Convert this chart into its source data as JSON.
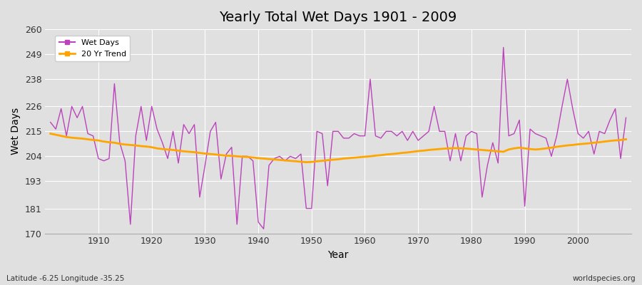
{
  "title": "Yearly Total Wet Days 1901 - 2009",
  "xlabel": "Year",
  "ylabel": "Wet Days",
  "subtitle_left": "Latitude -6.25 Longitude -35.25",
  "subtitle_right": "worldspecies.org",
  "ylim": [
    170,
    260
  ],
  "yticks": [
    170,
    181,
    193,
    204,
    215,
    226,
    238,
    249,
    260
  ],
  "line_color": "#BB44BB",
  "trend_color": "#FFA500",
  "bg_color": "#E0E0E0",
  "wet_days": [
    219,
    216,
    225,
    213,
    226,
    221,
    226,
    214,
    213,
    203,
    202,
    203,
    236,
    210,
    202,
    174,
    213,
    226,
    211,
    226,
    216,
    210,
    203,
    215,
    201,
    218,
    214,
    218,
    186,
    200,
    215,
    219,
    194,
    205,
    208,
    174,
    204,
    204,
    202,
    175,
    172,
    200,
    203,
    204,
    202,
    204,
    203,
    205,
    181,
    181,
    215,
    214,
    191,
    215,
    215,
    212,
    212,
    214,
    213,
    213,
    238,
    213,
    212,
    215,
    215,
    213,
    215,
    211,
    215,
    211,
    213,
    215,
    226,
    215,
    215,
    202,
    214,
    202,
    213,
    215,
    214,
    186,
    200,
    210,
    201,
    252,
    213,
    214,
    220,
    182,
    216,
    214,
    213,
    212,
    204,
    213,
    226,
    238,
    225,
    214,
    212,
    215,
    205,
    215,
    214,
    220,
    225,
    203,
    221
  ],
  "years": [
    1901,
    1902,
    1903,
    1904,
    1905,
    1906,
    1907,
    1908,
    1909,
    1910,
    1911,
    1912,
    1913,
    1914,
    1915,
    1916,
    1917,
    1918,
    1919,
    1920,
    1921,
    1922,
    1923,
    1924,
    1925,
    1926,
    1927,
    1928,
    1929,
    1930,
    1931,
    1932,
    1933,
    1934,
    1935,
    1936,
    1937,
    1938,
    1939,
    1940,
    1941,
    1942,
    1943,
    1944,
    1945,
    1946,
    1947,
    1948,
    1949,
    1950,
    1951,
    1952,
    1953,
    1954,
    1955,
    1956,
    1957,
    1958,
    1959,
    1960,
    1961,
    1962,
    1963,
    1964,
    1965,
    1966,
    1967,
    1968,
    1969,
    1970,
    1971,
    1972,
    1973,
    1974,
    1975,
    1976,
    1977,
    1978,
    1979,
    1980,
    1981,
    1982,
    1983,
    1984,
    1985,
    1986,
    1987,
    1988,
    1989,
    1990,
    1991,
    1992,
    1993,
    1994,
    1995,
    1996,
    1997,
    1998,
    1999,
    2000,
    2001,
    2002,
    2003,
    2004,
    2005,
    2006,
    2007,
    2008,
    2009
  ],
  "trend": [
    214.0,
    213.5,
    213.0,
    212.5,
    212.2,
    212.0,
    211.8,
    211.5,
    211.2,
    211.0,
    210.5,
    210.2,
    210.0,
    209.5,
    209.2,
    209.0,
    208.8,
    208.5,
    208.3,
    208.0,
    207.5,
    207.2,
    207.0,
    206.8,
    206.5,
    206.2,
    206.0,
    205.8,
    205.5,
    205.2,
    205.0,
    204.8,
    204.5,
    204.3,
    204.2,
    204.0,
    203.8,
    203.7,
    203.5,
    203.2,
    203.0,
    202.8,
    202.6,
    202.4,
    202.2,
    202.0,
    201.8,
    201.6,
    201.4,
    201.5,
    201.8,
    202.0,
    202.3,
    202.5,
    202.7,
    203.0,
    203.2,
    203.4,
    203.6,
    203.8,
    204.0,
    204.3,
    204.5,
    204.8,
    205.0,
    205.2,
    205.5,
    205.7,
    206.0,
    206.3,
    206.5,
    206.8,
    207.0,
    207.2,
    207.4,
    207.5,
    207.6,
    207.5,
    207.4,
    207.2,
    207.0,
    206.8,
    206.6,
    206.4,
    206.2,
    206.0,
    207.0,
    207.5,
    207.8,
    207.5,
    207.2,
    207.0,
    207.2,
    207.5,
    207.8,
    208.2,
    208.5,
    208.8,
    209.0,
    209.3,
    209.5,
    209.7,
    210.0,
    210.2,
    210.5,
    210.8,
    211.0,
    211.2,
    211.5
  ],
  "figsize": [
    9.0,
    4.0
  ],
  "dpi": 100
}
